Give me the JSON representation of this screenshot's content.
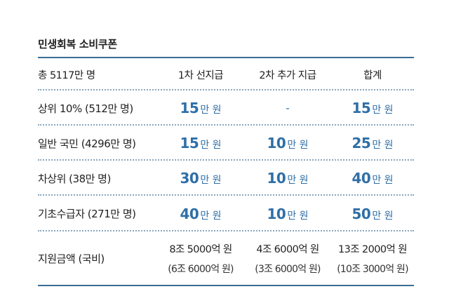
{
  "title": "민생회복 소비쿠폰",
  "header": {
    "population": "총 5117만 명",
    "col1": "1차 선지급",
    "col2": "2차 추가 지급",
    "col3": "합계"
  },
  "unit": "만 원",
  "rows": [
    {
      "label": "상위 10% (512만 명)",
      "first": "15",
      "second": "-",
      "total": "15"
    },
    {
      "label": "일반 국민 (4296만 명)",
      "first": "15",
      "second": "10",
      "total": "25"
    },
    {
      "label": "차상위 (38만 명)",
      "first": "30",
      "second": "10",
      "total": "40"
    },
    {
      "label": "기초수급자 (271만 명)",
      "first": "40",
      "second": "10",
      "total": "50"
    }
  ],
  "budget": {
    "label": "지원금액 (국비)",
    "first": "8조 5000억 원",
    "first_sub": "(6조 6000억 원)",
    "second": "4조 6000억 원",
    "second_sub": "(3조 6000억 원)",
    "total": "13조 2000억 원",
    "total_sub": "(10조 3000억 원)"
  },
  "colors": {
    "accent": "#2f6fa7",
    "rule": "#3b6d92",
    "dash": "#8aa6bd"
  }
}
